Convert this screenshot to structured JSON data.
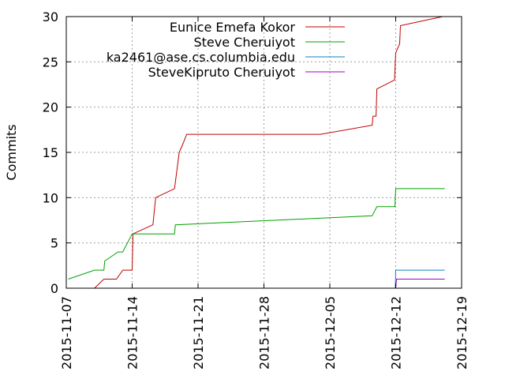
{
  "chart_data": {
    "type": "line",
    "ylabel": "Commits",
    "xlabel": "",
    "title": "",
    "ylim": [
      0,
      30
    ],
    "xlim": [
      "2015-11-07",
      "2015-12-19"
    ],
    "y_ticks": [
      0,
      5,
      10,
      15,
      20,
      25,
      30
    ],
    "x_ticks": [
      "2015-11-07",
      "2015-11-14",
      "2015-11-21",
      "2015-11-28",
      "2015-12-05",
      "2015-12-12",
      "2015-12-19"
    ],
    "grid": true,
    "legend_position": "top-right",
    "series": [
      {
        "name": "Eunice Emefa Kokor",
        "color": "#c00000",
        "points": [
          [
            "2015-11-10 00:00",
            0
          ],
          [
            "2015-11-11 00:00",
            1
          ],
          [
            "2015-11-12 08:00",
            1
          ],
          [
            "2015-11-13 00:00",
            2
          ],
          [
            "2015-11-14 00:00",
            2
          ],
          [
            "2015-11-14 02:00",
            6
          ],
          [
            "2015-11-16 05:00",
            7
          ],
          [
            "2015-11-16 12:00",
            10
          ],
          [
            "2015-11-18 12:00",
            11
          ],
          [
            "2015-11-19 00:00",
            15
          ],
          [
            "2015-11-19 10:00",
            16
          ],
          [
            "2015-11-19 19:00",
            17
          ],
          [
            "2015-12-04 00:00",
            17
          ],
          [
            "2015-12-09 12:00",
            18
          ],
          [
            "2015-12-09 14:00",
            19
          ],
          [
            "2015-12-09 22:00",
            19
          ],
          [
            "2015-12-10 00:00",
            22
          ],
          [
            "2015-12-11 21:00",
            23
          ],
          [
            "2015-12-12 00:00",
            26
          ],
          [
            "2015-12-12 10:00",
            27
          ],
          [
            "2015-12-12 12:00",
            29
          ],
          [
            "2015-12-17 00:00",
            30
          ]
        ]
      },
      {
        "name": "Steve Cheruiyot",
        "color": "#00a000",
        "points": [
          [
            "2015-11-07 05:00",
            1
          ],
          [
            "2015-11-10 00:00",
            2
          ],
          [
            "2015-11-11 00:00",
            2
          ],
          [
            "2015-11-11 02:00",
            3
          ],
          [
            "2015-11-12 12:00",
            4
          ],
          [
            "2015-11-13 00:00",
            4
          ],
          [
            "2015-11-13 12:00",
            5
          ],
          [
            "2015-11-14 00:00",
            6
          ],
          [
            "2015-11-18 12:00",
            6
          ],
          [
            "2015-11-18 14:00",
            7
          ],
          [
            "2015-12-09 12:00",
            8
          ],
          [
            "2015-12-10 00:00",
            9
          ],
          [
            "2015-12-11 22:00",
            9
          ],
          [
            "2015-12-12 00:00",
            11
          ],
          [
            "2015-12-17 05:00",
            11
          ]
        ]
      },
      {
        "name": "ka2461@ase.cs.columbia.edu",
        "color": "#1080c0",
        "points": [
          [
            "2015-12-11 23:00",
            0
          ],
          [
            "2015-12-12 00:00",
            2
          ],
          [
            "2015-12-17 05:00",
            2
          ]
        ]
      },
      {
        "name": "SteveKipruto Cheruiyot",
        "color": "#a000c0",
        "points": [
          [
            "2015-12-12 00:00",
            0
          ],
          [
            "2015-12-12 02:00",
            1
          ],
          [
            "2015-12-17 05:00",
            1
          ]
        ]
      }
    ]
  }
}
